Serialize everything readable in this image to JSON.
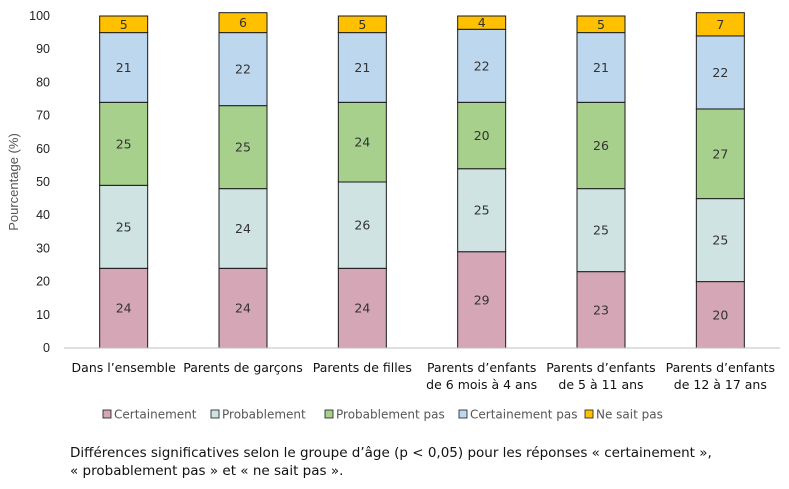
{
  "chart_data": {
    "type": "bar",
    "stacked": true,
    "title": "",
    "xlabel": "",
    "ylabel": "Pourcentage (%)",
    "ylim": [
      0,
      100
    ],
    "yticks": [
      0,
      10,
      20,
      30,
      40,
      50,
      60,
      70,
      80,
      90,
      100
    ],
    "grid": false,
    "legend_position": "bottom",
    "categories": [
      [
        "Dans l’ensemble"
      ],
      [
        "Parents de garçons"
      ],
      [
        "Parents de filles"
      ],
      [
        "Parents d’enfants",
        "de 6 mois à 4 ans"
      ],
      [
        "Parents d’enfants",
        "de 5 à 11 ans"
      ],
      [
        "Parents d’enfants",
        "de 12 à 17 ans"
      ]
    ],
    "series": [
      {
        "name": "Certainement",
        "color": "#d5a6b5",
        "values": [
          24,
          24,
          24,
          29,
          23,
          20
        ]
      },
      {
        "name": "Probablement",
        "color": "#cfe3e2",
        "values": [
          25,
          24,
          26,
          25,
          25,
          25
        ]
      },
      {
        "name": "Probablement pas",
        "color": "#a8d08d",
        "values": [
          25,
          25,
          24,
          20,
          26,
          27
        ]
      },
      {
        "name": "Certainement pas",
        "color": "#bdd7ee",
        "values": [
          21,
          22,
          21,
          22,
          21,
          22
        ]
      },
      {
        "name": "Ne sait pas",
        "color": "#ffc000",
        "values": [
          5,
          6,
          5,
          4,
          5,
          7
        ]
      }
    ]
  },
  "note": {
    "line1": "Différences significatives selon le groupe d’âge (p < 0,05) pour les réponses « certainement »,",
    "line2": "« probablement pas » et « ne sait pas »."
  }
}
